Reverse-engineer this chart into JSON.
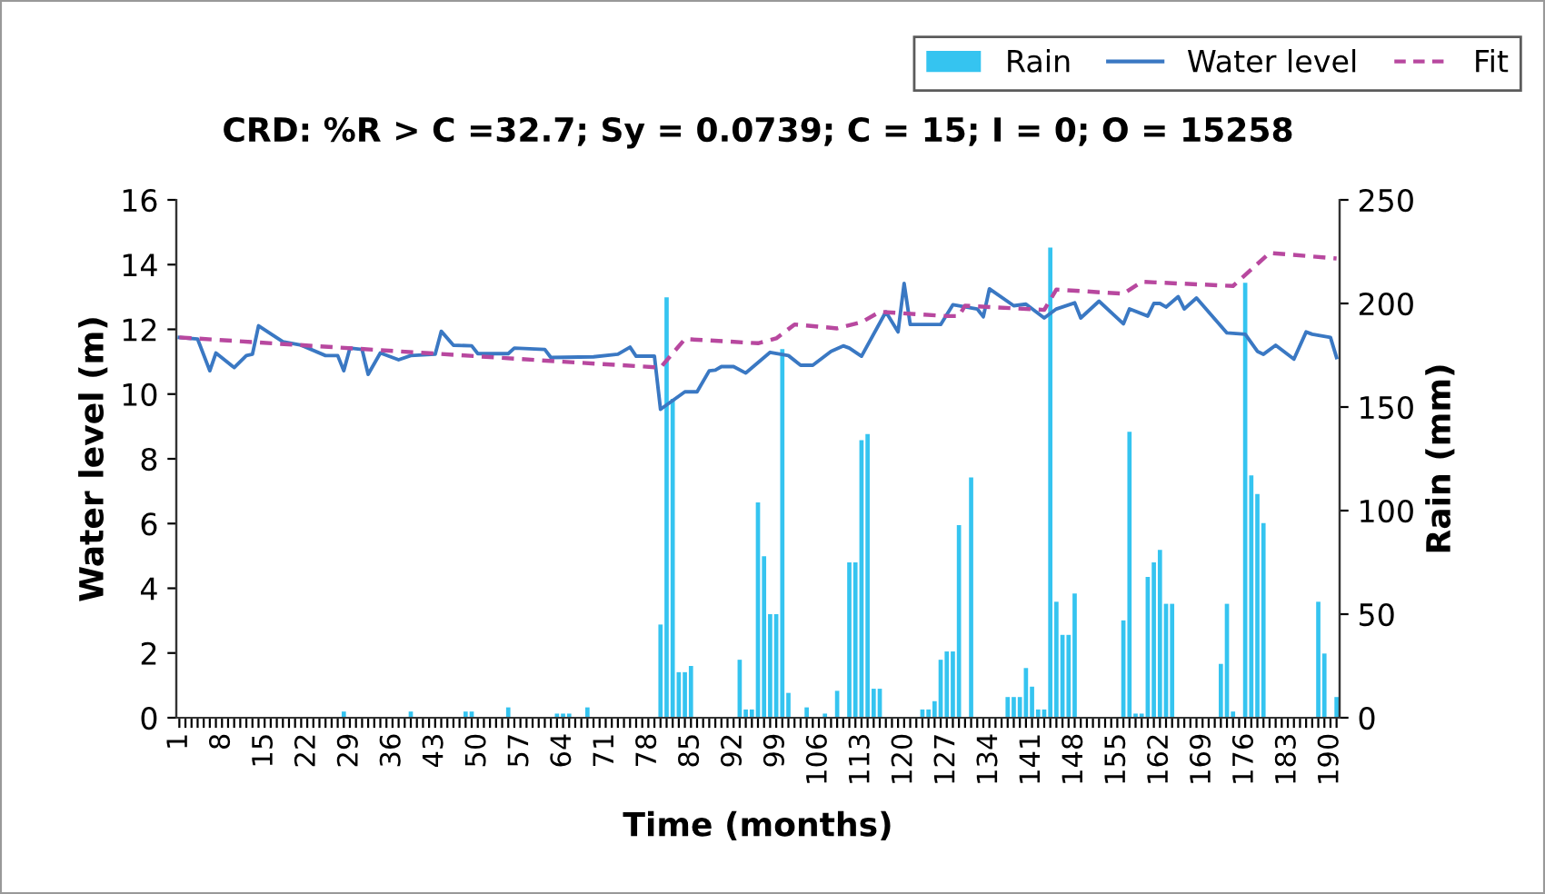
{
  "chart_data": {
    "type": "bar",
    "title": "CRD: %R > C =32.7; Sy = 0.0739; C = 15; I = 0; O = 15258",
    "xlabel": "Time (months)",
    "ylabel": "Water level (m)",
    "y2label": "Rain (mm)",
    "categories": [
      "1",
      null,
      null,
      null,
      null,
      null,
      null,
      "8",
      null,
      null,
      null,
      null,
      null,
      null,
      "15",
      null,
      null,
      null,
      null,
      null,
      null,
      "22",
      null,
      null,
      null,
      null,
      null,
      null,
      "29",
      null,
      null,
      null,
      null,
      null,
      null,
      "36",
      null,
      null,
      null,
      null,
      null,
      null,
      "43",
      null,
      null,
      null,
      null,
      null,
      null,
      "50",
      null,
      null,
      null,
      null,
      null,
      null,
      "57",
      null,
      null,
      null,
      null,
      null,
      null,
      "64",
      null,
      null,
      null,
      null,
      null,
      null,
      "71",
      null,
      null,
      null,
      null,
      null,
      null,
      "78",
      null,
      null,
      null,
      null,
      null,
      null,
      "85",
      null,
      null,
      null,
      null,
      null,
      null,
      "92",
      null,
      null,
      null,
      null,
      null,
      null,
      "99",
      null,
      null,
      null,
      null,
      null,
      null,
      "106",
      null,
      null,
      null,
      null,
      null,
      null,
      "113",
      null,
      null,
      null,
      null,
      null,
      null,
      "120",
      null,
      null,
      null,
      null,
      null,
      null,
      "127",
      null,
      null,
      null,
      null,
      null,
      null,
      "134",
      null,
      null,
      null,
      null,
      null,
      null,
      "141",
      null,
      null,
      null,
      null,
      null,
      null,
      "148",
      null,
      null,
      null,
      null,
      null,
      null,
      "155",
      null,
      null,
      null,
      null,
      null,
      null,
      "162",
      null,
      null,
      null,
      null,
      null,
      null,
      "169",
      null,
      null,
      null,
      null,
      null,
      null,
      "176",
      null,
      null,
      null,
      null,
      null,
      null,
      "183",
      null,
      null,
      null,
      null,
      null,
      null,
      "190",
      null
    ],
    "series": [
      {
        "name": "Rain",
        "axis": "y2",
        "color": "#35c4f0",
        "values": [
          0,
          0,
          0,
          0,
          0,
          0,
          0,
          0,
          0,
          0,
          0,
          0,
          0,
          0,
          0,
          0,
          0,
          0,
          0,
          0,
          0,
          0,
          0,
          0,
          0,
          0,
          0,
          3,
          0,
          0,
          0,
          0,
          0,
          0,
          0,
          0,
          0,
          0,
          3,
          0,
          0,
          0,
          0,
          0,
          0,
          0,
          0,
          3,
          3,
          0,
          0,
          0,
          0,
          0,
          5,
          0,
          0,
          0,
          0,
          0,
          0,
          0,
          2,
          2,
          2,
          0,
          0,
          5,
          0,
          0,
          0,
          0,
          0,
          0,
          0,
          0,
          0,
          0,
          0,
          45,
          203,
          154,
          22,
          22,
          25,
          0,
          0,
          0,
          0,
          0,
          0,
          0,
          28,
          4,
          4,
          104,
          78,
          50,
          50,
          178,
          12,
          0,
          0,
          5,
          0,
          0,
          2,
          0,
          13,
          0,
          75,
          75,
          134,
          137,
          14,
          14,
          0,
          0,
          0,
          0,
          0,
          0,
          4,
          4,
          8,
          28,
          32,
          32,
          93,
          0,
          116,
          0,
          0,
          0,
          0,
          0,
          10,
          10,
          10,
          24,
          15,
          4,
          4,
          227,
          56,
          40,
          40,
          60,
          0,
          0,
          0,
          0,
          0,
          0,
          0,
          47,
          138,
          2,
          2,
          68,
          75,
          81,
          55,
          55,
          0,
          0,
          0,
          0,
          0,
          0,
          0,
          26,
          55,
          3,
          0,
          210,
          117,
          108,
          94,
          0,
          0,
          0,
          0,
          0,
          0,
          0,
          0,
          56,
          31,
          0,
          10
        ]
      },
      {
        "name": "Water level",
        "type": "line",
        "color": "#3a78c3",
        "line_style": "solid",
        "values": [
          11.75,
          null,
          null,
          11.7,
          null,
          10.72,
          11.27,
          null,
          null,
          10.82,
          null,
          11.19,
          11.23,
          12.11,
          null,
          null,
          null,
          11.62,
          null,
          null,
          11.51,
          null,
          null,
          null,
          11.19,
          null,
          11.19,
          10.72,
          11.42,
          null,
          11.38,
          10.61,
          null,
          11.27,
          null,
          null,
          11.06,
          null,
          11.19,
          null,
          null,
          null,
          11.23,
          11.94,
          null,
          11.51,
          null,
          null,
          11.49,
          11.25,
          null,
          null,
          null,
          null,
          11.25,
          11.42,
          null,
          null,
          null,
          null,
          11.38,
          11.13,
          null,
          null,
          null,
          null,
          null,
          null,
          11.15,
          null,
          null,
          null,
          11.23,
          null,
          11.45,
          11.17,
          null,
          null,
          11.17,
          9.53,
          null,
          null,
          null,
          10.07,
          null,
          10.07,
          null,
          10.72,
          10.74,
          10.85,
          null,
          10.85,
          null,
          10.65,
          null,
          null,
          null,
          11.29,
          null,
          null,
          11.19,
          null,
          10.89,
          null,
          10.89,
          null,
          null,
          11.32,
          null,
          11.49,
          11.42,
          null,
          11.17,
          null,
          null,
          null,
          12.54,
          null,
          11.92,
          13.42,
          12.15,
          null,
          null,
          null,
          null,
          12.15,
          null,
          12.76,
          null,
          null,
          null,
          12.63,
          12.39,
          13.25,
          null,
          null,
          null,
          12.73,
          null,
          12.78,
          null,
          null,
          12.35,
          null,
          12.63,
          null,
          null,
          12.82,
          12.35,
          null,
          null,
          12.87,
          null,
          null,
          null,
          12.17,
          12.63,
          null,
          null,
          12.41,
          12.8,
          12.8,
          12.69,
          null,
          13.01,
          12.63,
          null,
          12.97,
          null,
          null,
          null,
          null,
          11.89,
          null,
          null,
          11.85,
          null,
          11.32,
          11.23,
          null,
          11.51,
          null,
          null,
          11.08,
          null,
          11.92,
          11.85,
          null,
          null,
          11.75,
          11.13
        ]
      },
      {
        "name": "Fit",
        "type": "line",
        "color": "#b8489f",
        "line_style": "dashed",
        "values": [
          11.75,
          null,
          null,
          null,
          null,
          null,
          null,
          null,
          null,
          null,
          null,
          null,
          null,
          null,
          null,
          null,
          null,
          null,
          null,
          null,
          null,
          null,
          null,
          null,
          null,
          null,
          null,
          null,
          null,
          null,
          null,
          null,
          null,
          null,
          null,
          null,
          null,
          null,
          null,
          null,
          null,
          null,
          null,
          null,
          null,
          null,
          null,
          null,
          null,
          null,
          null,
          null,
          null,
          null,
          null,
          null,
          null,
          null,
          null,
          null,
          null,
          null,
          null,
          11.0,
          null,
          null,
          null,
          null,
          null,
          null,
          null,
          null,
          null,
          null,
          null,
          null,
          null,
          null,
          null,
          10.82,
          null,
          null,
          null,
          11.7,
          null,
          null,
          null,
          null,
          null,
          null,
          null,
          null,
          null,
          null,
          null,
          11.57,
          null,
          null,
          11.72,
          null,
          null,
          12.15,
          null,
          null,
          null,
          null,
          null,
          null,
          12.03,
          null,
          null,
          null,
          12.22,
          null,
          null,
          12.54,
          null,
          null,
          null,
          null,
          null,
          null,
          null,
          null,
          null,
          null,
          12.41,
          null,
          12.41,
          12.73,
          null,
          null,
          null,
          null,
          null,
          null,
          null,
          null,
          null,
          null,
          null,
          null,
          12.6,
          null,
          13.23,
          null,
          null,
          null,
          null,
          null,
          null,
          null,
          null,
          null,
          null,
          13.1,
          null,
          null,
          13.47,
          null,
          null,
          null,
          null,
          null,
          null,
          null,
          null,
          null,
          null,
          null,
          null,
          null,
          null,
          13.34,
          null,
          null,
          null,
          null,
          null,
          14.36,
          null,
          null,
          null,
          null,
          null,
          null,
          null,
          null,
          null,
          null,
          14.19
        ]
      }
    ],
    "ylim": [
      0,
      16
    ],
    "yticks": [
      0,
      2,
      4,
      6,
      8,
      10,
      12,
      14,
      16
    ],
    "y2lim": [
      0,
      250
    ],
    "y2ticks": [
      0,
      50,
      100,
      150,
      200,
      250
    ],
    "grid": false,
    "legend": "top right"
  }
}
